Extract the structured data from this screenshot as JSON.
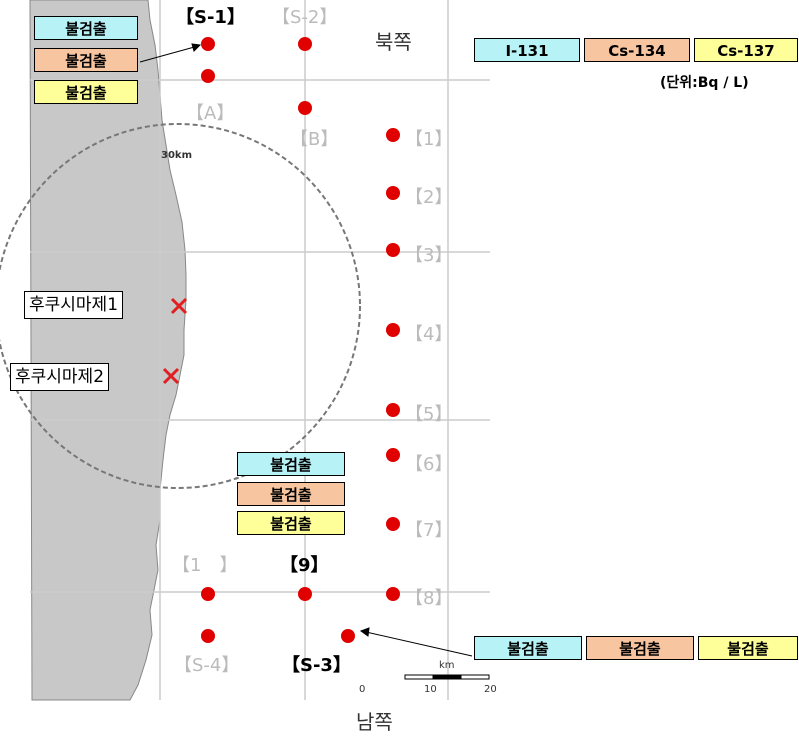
{
  "map": {
    "compass": {
      "north": "북쪽",
      "south": "남쪽"
    },
    "radius_label": "30km",
    "legend": {
      "nuclides": [
        "I-131",
        "Cs-134",
        "Cs-137"
      ],
      "unit": "(단위:Bq / L)"
    },
    "plants": [
      "후쿠시마제1",
      "후쿠시마제2"
    ],
    "stations": {
      "s1": "【S-1】",
      "s2": "【S-2】",
      "a": "【A】",
      "b": "【B】",
      "p1": "【1】",
      "p2": "【2】",
      "p3": "【3】",
      "p4": "【4】",
      "p5": "【5】",
      "p6": "【6】",
      "p7": "【7】",
      "p8": "【8】",
      "p1b": "【1　】",
      "p9": "【9】",
      "s4": "【S-4】",
      "s3": "【S-3】"
    },
    "results": {
      "s1": [
        "불검출",
        "불검출",
        "불검출"
      ],
      "p9": [
        "불검출",
        "불검출",
        "불검출"
      ],
      "s3": [
        "불검출",
        "불검출",
        "불검출"
      ]
    },
    "scale": {
      "unit": "km",
      "ticks": [
        "0",
        "10",
        "20"
      ]
    }
  }
}
